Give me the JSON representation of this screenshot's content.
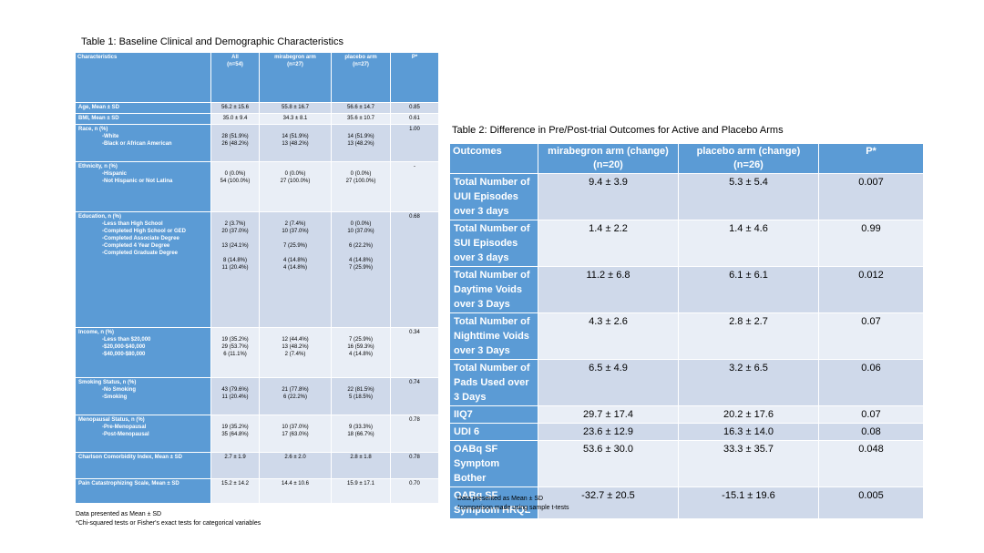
{
  "table1": {
    "caption": "Table 1: Baseline Clinical and Demographic Characteristics",
    "headers": [
      "Characteristics",
      "All\n(n=54)",
      "mirabegron arm\n(n=27)",
      "placebo arm\n(n=27)",
      "P*"
    ],
    "rows": [
      {
        "label": "Age, Mean ± SD",
        "subs": [],
        "all": [
          "56.2 ± 15.6"
        ],
        "mira": [
          "55.8 ± 16.7"
        ],
        "placebo": [
          "56.6 ± 14.7"
        ],
        "p": "0.85"
      },
      {
        "label": "BMI, Mean ± SD",
        "subs": [],
        "all": [
          "35.0 ± 9.4"
        ],
        "mira": [
          "34.3 ± 8.1"
        ],
        "placebo": [
          "35.6 ± 10.7"
        ],
        "p": "0.61"
      },
      {
        "label": "Race, n (%)",
        "subs": [
          "-White",
          "-Black or African American"
        ],
        "all": [
          "",
          "28 (51.9%)",
          "26 (48.2%)"
        ],
        "mira": [
          "",
          "14 (51.9%)",
          "13 (48.2%)"
        ],
        "placebo": [
          "",
          "14 (51.9%)",
          "13 (48.2%)"
        ],
        "p": "1.00"
      },
      {
        "label": "Ethnicity, n (%)",
        "subs": [
          "-Hispanic",
          "-Not Hispanic or Not Latina"
        ],
        "all": [
          "",
          "0 (0.0%)",
          "54 (100.0%)"
        ],
        "mira": [
          "",
          "0 (0.0%)",
          "27 (100.0%)"
        ],
        "placebo": [
          "",
          "0 (0.0%)",
          "27 (100.0%)"
        ],
        "p": "-"
      },
      {
        "label": "Education, n (%)",
        "subs": [
          "-Less than High School",
          "-Completed High School or GED",
          "-Completed Associate Degree",
          "-Completed 4 Year Degree",
          "-Completed Graduate Degree"
        ],
        "all": [
          "",
          "2 (3.7%)",
          "20 (37.0%)",
          "",
          "13 (24.1%)",
          "",
          "8 (14.8%)",
          "11 (20.4%)"
        ],
        "mira": [
          "",
          "2 (7.4%)",
          "10 (37.0%)",
          "",
          "7 (25.9%)",
          "",
          "4 (14.8%)",
          "4 (14.8%)"
        ],
        "placebo": [
          "",
          "0 (0.0%)",
          "10 (37.0%)",
          "",
          "6 (22.2%)",
          "",
          "4 (14.8%)",
          "7 (25.9%)"
        ],
        "p": "0.68"
      },
      {
        "label": "Income, n (%)",
        "subs": [
          "-Less than $20,000",
          "-$20,000-$40,000",
          "-$40,000-$80,000"
        ],
        "all": [
          "",
          "19 (35.2%)",
          "29 (53.7%)",
          "6 (11.1%)"
        ],
        "mira": [
          "",
          "12 (44.4%)",
          "13 (48.2%)",
          "2 (7.4%)"
        ],
        "placebo": [
          "",
          "7 (25.9%)",
          "16 (59.3%)",
          "4 (14.8%)"
        ],
        "p": "0.34"
      },
      {
        "label": "Smoking Status, n (%)",
        "subs": [
          "-No Smoking",
          "-Smoking"
        ],
        "all": [
          "",
          "43 (79.6%)",
          "11 (20.4%)"
        ],
        "mira": [
          "",
          "21 (77.8%)",
          "6 (22.2%)"
        ],
        "placebo": [
          "",
          "22 (81.5%)",
          "5 (18.5%)"
        ],
        "p": "0.74"
      },
      {
        "label": "Menopausal Status, n (%)",
        "subs": [
          "-Pre-Menopausal",
          "-Post-Menopausal"
        ],
        "all": [
          "",
          "19 (35.2%)",
          "35 (64.8%)"
        ],
        "mira": [
          "",
          "10 (37.0%)",
          "17 (63.0%)"
        ],
        "placebo": [
          "",
          "9 (33.3%)",
          "18 (66.7%)"
        ],
        "p": "0.78"
      },
      {
        "label": "Charlson Comorbidity Index, Mean ± SD",
        "subs": [],
        "all": [
          "2.7 ± 1.9"
        ],
        "mira": [
          "2.6 ± 2.0"
        ],
        "placebo": [
          "2.8 ± 1.8"
        ],
        "p": "0.78"
      },
      {
        "label": "Pain Catastrophizing Scale, Mean ± SD",
        "subs": [],
        "all": [
          "15.2 ± 14.2"
        ],
        "mira": [
          "14.4 ± 10.6"
        ],
        "placebo": [
          "15.9 ± 17.1"
        ],
        "p": "0.70"
      }
    ],
    "notes": [
      "Data presented as Mean ± SD",
      "*Chi-squared tests or Fisher's exact tests for categorical variables"
    ]
  },
  "table2": {
    "caption": "Table 2:  Difference in Pre/Post-trial Outcomes for Active and Placebo Arms",
    "headers": [
      "Outcomes",
      "mirabegron arm (change)\n(n=20)",
      "placebo arm (change)\n(n=26)",
      "P*"
    ],
    "rows": [
      {
        "label": "Total Number of UUI Episodes over 3 days",
        "mira": "9.4 ± 3.9",
        "placebo": "5.3 ± 5.4",
        "p": "0.007"
      },
      {
        "label": "Total Number of SUI Episodes over 3 days",
        "mira": "1.4 ± 2.2",
        "placebo": "1.4 ± 4.6",
        "p": "0.99"
      },
      {
        "label": "Total Number of Daytime Voids over 3 Days",
        "mira": "11.2 ± 6.8",
        "placebo": "6.1 ± 6.1",
        "p": "0.012"
      },
      {
        "label": "Total Number of Nighttime Voids over 3 Days",
        "mira": "4.3 ± 2.6",
        "placebo": "2.8 ± 2.7",
        "p": "0.07"
      },
      {
        "label": "Total Number of Pads Used over 3 Days",
        "mira": "6.5 ± 4.9",
        "placebo": "3.2 ± 6.5",
        "p": "0.06"
      },
      {
        "label": "IIQ7",
        "mira": "29.7 ± 17.4",
        "placebo": "20.2 ± 17.6",
        "p": "0.07"
      },
      {
        "label": "UDI 6",
        "mira": "23.6 ± 12.9",
        "placebo": "16.3 ± 14.0",
        "p": "0.08"
      },
      {
        "label": "OABq SF Symptom Bother",
        "mira": "53.6 ± 30.0",
        "placebo": "33.3 ± 35.7",
        "p": "0.048"
      },
      {
        "label": "OABq SF Symptom HRQL",
        "mira": "-32.7 ± 20.5",
        "placebo": "-15.1 ± 19.6",
        "p": "0.005"
      }
    ],
    "notes": [
      "Data presented as Mean ± SD",
      "*comparison made using sample t-tests"
    ]
  }
}
